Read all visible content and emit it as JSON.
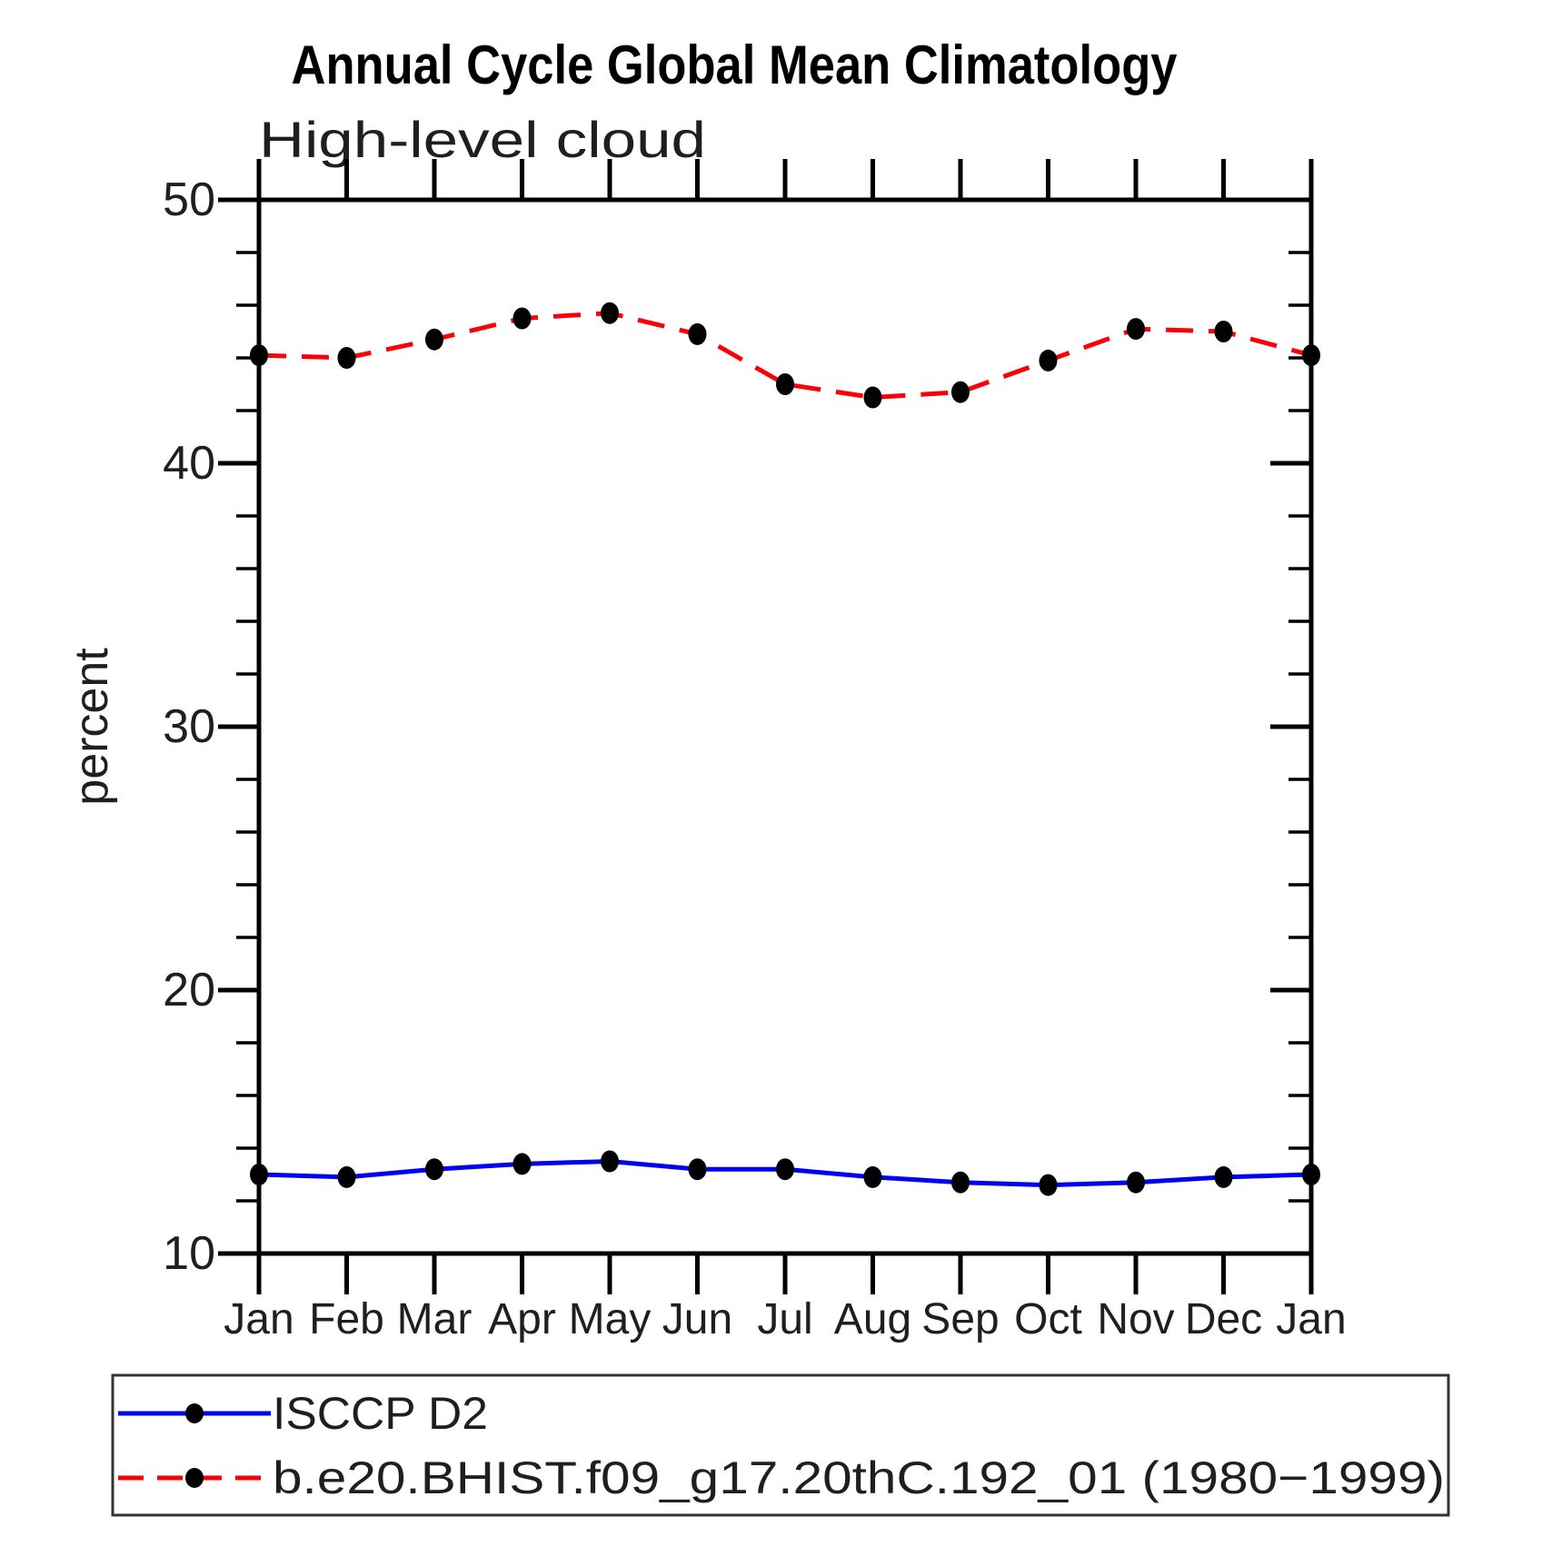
{
  "chart_data": {
    "type": "line",
    "title": "Annual Cycle Global Mean Climatology",
    "subtitle": "High-level cloud",
    "ylabel": "percent",
    "xlabel": "",
    "ylim": [
      10,
      50
    ],
    "y_major_ticks": [
      50,
      40,
      30,
      20,
      10
    ],
    "y_minor_tick_step": 2,
    "grid": "off",
    "legend_position": "bottom-left-box",
    "categories": [
      "Jan",
      "Feb",
      "Mar",
      "Apr",
      "May",
      "Jun",
      "Jul",
      "Aug",
      "Sep",
      "Oct",
      "Nov",
      "Dec",
      "Jan"
    ],
    "series": [
      {
        "name": "ISCCP D2",
        "color": "#0202f2",
        "line_style": "solid",
        "marker": "filled-circle",
        "marker_color": "#000000",
        "values": [
          13.0,
          12.9,
          13.2,
          13.4,
          13.5,
          13.2,
          13.2,
          12.9,
          12.7,
          12.6,
          12.7,
          12.9,
          13.0
        ]
      },
      {
        "name": "b.e20.BHIST.f09_g17.20thC.192_01 (1980−1999)",
        "color": "#fb0006",
        "line_style": "dashed",
        "marker": "filled-circle",
        "marker_color": "#000000",
        "values": [
          44.1,
          44.0,
          44.7,
          45.5,
          45.7,
          44.9,
          43.0,
          42.5,
          42.7,
          43.9,
          45.1,
          45.0,
          44.1
        ]
      }
    ]
  },
  "colors": {
    "axis": "#000000",
    "text": "#1a1a1a",
    "legend_border": "#333333",
    "background": "#ffffff"
  }
}
